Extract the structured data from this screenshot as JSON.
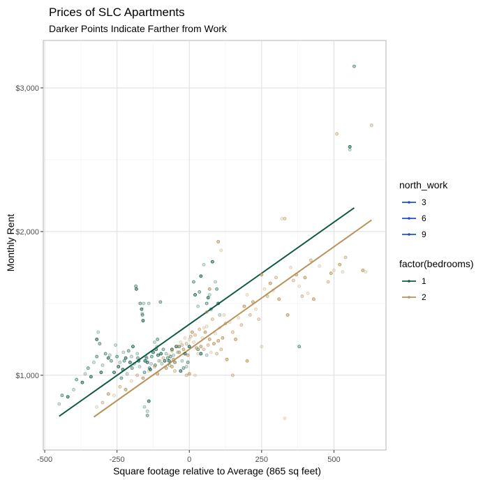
{
  "chart_data": {
    "type": "scatter",
    "title": "Prices of SLC Apartments",
    "subtitle": "Darker Points Indicate Farther from Work",
    "xlabel": "Square footage relative to Average (865 sq feet)",
    "ylabel": "Monthly Rent",
    "xlim": [
      -505,
      680
    ],
    "ylim": [
      480,
      3330
    ],
    "x_ticks": [
      -500,
      -250,
      0,
      250,
      500
    ],
    "x_tick_labels": [
      "-500",
      "-250",
      "0",
      "250",
      "500"
    ],
    "y_ticks": [
      1000,
      2000,
      3000
    ],
    "y_tick_labels": [
      "$1,000",
      "$2,000",
      "$3,000"
    ],
    "grid": true,
    "legend_position": "right",
    "legends": [
      {
        "title": "north_work",
        "entries": [
          {
            "label": "3",
            "color": "#1f4fd6"
          },
          {
            "label": "6",
            "color": "#1f4fd6"
          },
          {
            "label": "9",
            "color": "#1f4fd6"
          }
        ]
      },
      {
        "title": "factor(bedrooms)",
        "entries": [
          {
            "label": "1",
            "color": "#0f5a45"
          },
          {
            "label": "2",
            "color": "#b8935a"
          }
        ]
      }
    ],
    "series": [
      {
        "name": "1",
        "color": "#0f5a45",
        "fit_line": {
          "x": [
            -450,
            570
          ],
          "y": [
            715,
            2165
          ]
        },
        "points": [
          [
            -450,
            800
          ],
          [
            -440,
            860
          ],
          [
            -420,
            850
          ],
          [
            -400,
            900
          ],
          [
            -390,
            970
          ],
          [
            -370,
            950
          ],
          [
            -360,
            1010
          ],
          [
            -350,
            1050
          ],
          [
            -340,
            990
          ],
          [
            -330,
            1090
          ],
          [
            -320,
            1130
          ],
          [
            -320,
            1250
          ],
          [
            -315,
            1300
          ],
          [
            -310,
            1220
          ],
          [
            -305,
            1020
          ],
          [
            -300,
            1070
          ],
          [
            -290,
            1150
          ],
          [
            -280,
            1120
          ],
          [
            -275,
            1140
          ],
          [
            -270,
            1100
          ],
          [
            -260,
            1020
          ],
          [
            -255,
            1210
          ],
          [
            -250,
            1130
          ],
          [
            -245,
            1060
          ],
          [
            -240,
            1090
          ],
          [
            -235,
            980
          ],
          [
            -230,
            1040
          ],
          [
            -228,
            1160
          ],
          [
            -225,
            1100
          ],
          [
            -220,
            1120
          ],
          [
            -215,
            1010
          ],
          [
            -210,
            1170
          ],
          [
            -205,
            1090
          ],
          [
            -200,
            1130
          ],
          [
            -198,
            1050
          ],
          [
            -195,
            1200
          ],
          [
            -190,
            1080
          ],
          [
            -185,
            1620
          ],
          [
            -183,
            1600
          ],
          [
            -180,
            1150
          ],
          [
            -178,
            1120
          ],
          [
            -175,
            1100
          ],
          [
            -172,
            1060
          ],
          [
            -170,
            1500
          ],
          [
            -165,
            1460
          ],
          [
            -163,
            1430
          ],
          [
            -162,
            1420
          ],
          [
            -160,
            1380
          ],
          [
            -158,
            1500
          ],
          [
            -155,
            1020
          ],
          [
            -153,
            1100
          ],
          [
            -150,
            1130
          ],
          [
            -148,
            1120
          ],
          [
            -145,
            1090
          ],
          [
            -140,
            1500
          ],
          [
            -138,
            1050
          ],
          [
            -135,
            1040
          ],
          [
            -132,
            1080
          ],
          [
            -130,
            1130
          ],
          [
            -125,
            1160
          ],
          [
            -120,
            1230
          ],
          [
            -118,
            1070
          ],
          [
            -115,
            1180
          ],
          [
            -112,
            1200
          ],
          [
            -110,
            1250
          ],
          [
            -108,
            1140
          ],
          [
            -105,
            1100
          ],
          [
            -100,
            1510
          ],
          [
            -98,
            1150
          ],
          [
            -95,
            1080
          ],
          [
            -90,
            1180
          ],
          [
            -85,
            1100
          ],
          [
            -80,
            1150
          ],
          [
            -75,
            1120
          ],
          [
            -70,
            1100
          ],
          [
            -68,
            1070
          ],
          [
            -65,
            1130
          ],
          [
            -60,
            1180
          ],
          [
            -55,
            1140
          ],
          [
            -50,
            1090
          ],
          [
            -45,
            1200
          ],
          [
            -40,
            1160
          ],
          [
            -35,
            1200
          ],
          [
            -30,
            1030
          ],
          [
            -25,
            1100
          ],
          [
            -20,
            1050
          ],
          [
            -15,
            1150
          ],
          [
            -10,
            1060
          ],
          [
            -5,
            1090
          ],
          [
            0,
            1200
          ],
          [
            -145,
            750
          ],
          [
            -145,
            720
          ],
          [
            -140,
            820
          ],
          [
            -155,
            780
          ],
          [
            15,
            1650
          ],
          [
            20,
            1560
          ],
          [
            30,
            1480
          ],
          [
            35,
            1580
          ],
          [
            40,
            1690
          ],
          [
            50,
            1770
          ],
          [
            60,
            1500
          ],
          [
            65,
            1540
          ],
          [
            70,
            1560
          ],
          [
            75,
            1460
          ],
          [
            80,
            1790
          ],
          [
            90,
            1650
          ],
          [
            95,
            1600
          ],
          [
            100,
            1500
          ],
          [
            105,
            1420
          ],
          [
            30,
            1180
          ],
          [
            40,
            1150
          ],
          [
            60,
            1140
          ],
          [
            380,
            1200
          ],
          [
            555,
            2590
          ],
          [
            555,
            2570
          ],
          [
            570,
            3150
          ]
        ]
      },
      {
        "name": "2",
        "color": "#b8935a",
        "fit_line": {
          "x": [
            -330,
            630
          ],
          "y": [
            710,
            2080
          ]
        },
        "points": [
          [
            -320,
            780
          ],
          [
            -300,
            810
          ],
          [
            -280,
            870
          ],
          [
            -260,
            860
          ],
          [
            -240,
            920
          ],
          [
            -220,
            900
          ],
          [
            -200,
            960
          ],
          [
            -180,
            1000
          ],
          [
            -160,
            980
          ],
          [
            -140,
            1030
          ],
          [
            -120,
            1060
          ],
          [
            -110,
            1010
          ],
          [
            -100,
            1100
          ],
          [
            -90,
            1120
          ],
          [
            -80,
            1050
          ],
          [
            -70,
            1140
          ],
          [
            -60,
            1170
          ],
          [
            -55,
            1110
          ],
          [
            -50,
            1090
          ],
          [
            -40,
            1200
          ],
          [
            -35,
            1160
          ],
          [
            -30,
            1230
          ],
          [
            -25,
            1210
          ],
          [
            -20,
            1180
          ],
          [
            -15,
            1260
          ],
          [
            -10,
            1220
          ],
          [
            -5,
            1140
          ],
          [
            0,
            1250
          ],
          [
            5,
            1270
          ],
          [
            10,
            1300
          ],
          [
            15,
            1230
          ],
          [
            20,
            1280
          ],
          [
            25,
            1190
          ],
          [
            30,
            1150
          ],
          [
            35,
            1320
          ],
          [
            40,
            1200
          ],
          [
            45,
            1260
          ],
          [
            50,
            1180
          ],
          [
            55,
            1300
          ],
          [
            60,
            1340
          ],
          [
            65,
            1210
          ],
          [
            70,
            1250
          ],
          [
            75,
            1160
          ],
          [
            80,
            1390
          ],
          [
            85,
            1220
          ],
          [
            90,
            1290
          ],
          [
            95,
            1150
          ],
          [
            100,
            1240
          ],
          [
            105,
            1330
          ],
          [
            110,
            1180
          ],
          [
            115,
            1260
          ],
          [
            120,
            1420
          ],
          [
            125,
            1360
          ],
          [
            130,
            1110
          ],
          [
            140,
            1370
          ],
          [
            150,
            1300
          ],
          [
            160,
            1250
          ],
          [
            170,
            1400
          ],
          [
            180,
            1350
          ],
          [
            190,
            1480
          ],
          [
            200,
            1560
          ],
          [
            210,
            1420
          ],
          [
            220,
            1510
          ],
          [
            230,
            1460
          ],
          [
            240,
            1390
          ],
          [
            250,
            1700
          ],
          [
            260,
            1600
          ],
          [
            270,
            1550
          ],
          [
            280,
            1640
          ],
          [
            290,
            1590
          ],
          [
            300,
            1680
          ],
          [
            310,
            1530
          ],
          [
            320,
            2090
          ],
          [
            330,
            2090
          ],
          [
            340,
            1420
          ],
          [
            350,
            1750
          ],
          [
            360,
            1660
          ],
          [
            370,
            1700
          ],
          [
            380,
            1620
          ],
          [
            390,
            1550
          ],
          [
            400,
            1680
          ],
          [
            410,
            1570
          ],
          [
            420,
            1800
          ],
          [
            430,
            1530
          ],
          [
            450,
            1760
          ],
          [
            480,
            1650
          ],
          [
            490,
            1710
          ],
          [
            500,
            1730
          ],
          [
            510,
            2680
          ],
          [
            520,
            1770
          ],
          [
            530,
            1720
          ],
          [
            540,
            1820
          ],
          [
            600,
            1730
          ],
          [
            610,
            1720
          ],
          [
            630,
            2740
          ],
          [
            100,
            1930
          ],
          [
            110,
            1870
          ],
          [
            60,
            1440
          ],
          [
            70,
            1600
          ],
          [
            50,
            1330
          ],
          [
            -10,
            1000
          ],
          [
            0,
            1010
          ],
          [
            20,
            1000
          ],
          [
            -50,
            1030
          ],
          [
            -60,
            1060
          ],
          [
            330,
            700
          ],
          [
            150,
            1000
          ],
          [
            200,
            1100
          ],
          [
            250,
            1200
          ]
        ]
      }
    ]
  }
}
